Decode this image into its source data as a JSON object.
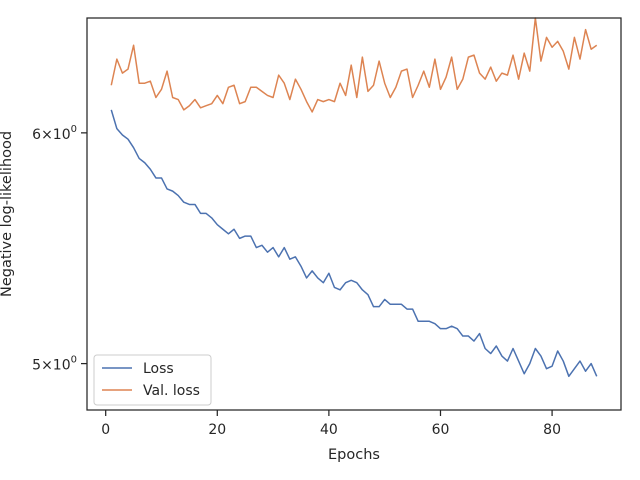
{
  "chart_data": {
    "type": "line",
    "xlabel": "Epochs",
    "ylabel": "Negative log-likelihood",
    "yscale": "log",
    "xlim": [
      -3.35,
      92.35
    ],
    "ylim": [
      4.82,
      6.57
    ],
    "xticks": [
      {
        "value": 0,
        "label": "0"
      },
      {
        "value": 20,
        "label": "20"
      },
      {
        "value": 40,
        "label": "40"
      },
      {
        "value": 60,
        "label": "60"
      },
      {
        "value": 80,
        "label": "80"
      }
    ],
    "yticks": [
      {
        "value": 5,
        "label": "5×10",
        "exponent": "0"
      },
      {
        "value": 6,
        "label": "6×10",
        "exponent": "0"
      }
    ],
    "grid": false,
    "legend_position": "lower-left",
    "series": [
      {
        "name": "Loss",
        "color": "#4c72b0",
        "x": [
          1,
          2,
          3,
          4,
          5,
          6,
          7,
          8,
          9,
          10,
          11,
          12,
          13,
          14,
          15,
          16,
          17,
          18,
          19,
          20,
          21,
          22,
          23,
          24,
          25,
          26,
          27,
          28,
          29,
          30,
          31,
          32,
          33,
          34,
          35,
          36,
          37,
          38,
          39,
          40,
          41,
          42,
          43,
          44,
          45,
          46,
          47,
          48,
          49,
          50,
          51,
          52,
          53,
          54,
          55,
          56,
          57,
          58,
          59,
          60,
          61,
          62,
          63,
          64,
          65,
          66,
          67,
          68,
          69,
          70,
          71,
          72,
          73,
          74,
          75,
          76,
          77,
          78,
          79,
          80,
          81,
          82,
          83,
          84,
          85,
          86,
          87,
          88
        ],
        "values": [
          6.11,
          6.02,
          5.99,
          5.97,
          5.93,
          5.88,
          5.86,
          5.83,
          5.79,
          5.79,
          5.74,
          5.73,
          5.71,
          5.68,
          5.67,
          5.67,
          5.63,
          5.63,
          5.61,
          5.58,
          5.56,
          5.54,
          5.56,
          5.52,
          5.53,
          5.53,
          5.48,
          5.49,
          5.46,
          5.48,
          5.44,
          5.48,
          5.43,
          5.44,
          5.4,
          5.35,
          5.38,
          5.35,
          5.33,
          5.37,
          5.31,
          5.3,
          5.33,
          5.34,
          5.33,
          5.3,
          5.28,
          5.23,
          5.23,
          5.26,
          5.24,
          5.24,
          5.24,
          5.22,
          5.22,
          5.17,
          5.17,
          5.17,
          5.16,
          5.14,
          5.14,
          5.15,
          5.14,
          5.11,
          5.11,
          5.09,
          5.12,
          5.06,
          5.04,
          5.07,
          5.03,
          5.01,
          5.06,
          5.01,
          4.96,
          5.0,
          5.06,
          5.03,
          4.98,
          4.99,
          5.05,
          5.01,
          4.95,
          4.98,
          5.01,
          4.97,
          5.0,
          4.95
        ]
      },
      {
        "name": "Val. loss",
        "color": "#dd8452",
        "x": [
          1,
          2,
          3,
          4,
          5,
          6,
          7,
          8,
          9,
          10,
          11,
          12,
          13,
          14,
          15,
          16,
          17,
          18,
          19,
          20,
          21,
          22,
          23,
          24,
          25,
          26,
          27,
          28,
          29,
          30,
          31,
          32,
          33,
          34,
          35,
          36,
          37,
          38,
          39,
          40,
          41,
          42,
          43,
          44,
          45,
          46,
          47,
          48,
          49,
          50,
          51,
          52,
          53,
          54,
          55,
          56,
          57,
          58,
          59,
          60,
          61,
          62,
          63,
          64,
          65,
          66,
          67,
          68,
          69,
          70,
          71,
          72,
          73,
          74,
          75,
          76,
          77,
          78,
          79,
          80,
          81,
          82,
          83,
          84,
          85,
          86,
          87,
          88
        ],
        "values": [
          6.23,
          6.36,
          6.29,
          6.31,
          6.43,
          6.24,
          6.24,
          6.25,
          6.17,
          6.21,
          6.3,
          6.17,
          6.16,
          6.11,
          6.13,
          6.16,
          6.12,
          6.13,
          6.14,
          6.18,
          6.14,
          6.22,
          6.23,
          6.14,
          6.15,
          6.22,
          6.22,
          6.2,
          6.18,
          6.17,
          6.28,
          6.24,
          6.16,
          6.26,
          6.21,
          6.15,
          6.1,
          6.16,
          6.15,
          6.16,
          6.15,
          6.24,
          6.18,
          6.33,
          6.17,
          6.37,
          6.2,
          6.23,
          6.35,
          6.24,
          6.17,
          6.22,
          6.3,
          6.31,
          6.17,
          6.23,
          6.3,
          6.22,
          6.36,
          6.21,
          6.27,
          6.37,
          6.21,
          6.26,
          6.37,
          6.38,
          6.29,
          6.26,
          6.32,
          6.25,
          6.29,
          6.28,
          6.38,
          6.26,
          6.39,
          6.3,
          6.57,
          6.35,
          6.47,
          6.42,
          6.45,
          6.4,
          6.31,
          6.47,
          6.36,
          6.51,
          6.41,
          6.43
        ]
      }
    ]
  }
}
